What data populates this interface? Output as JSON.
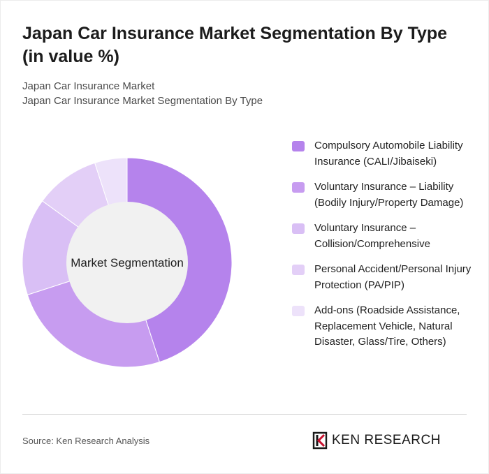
{
  "title": "Japan Car Insurance Market Segmentation By Type (in value %)",
  "subtitle_lines": [
    "Japan Car Insurance Market",
    "Japan Car Insurance Market Segmentation By Type"
  ],
  "chart_data": {
    "type": "pie",
    "variant": "donut",
    "center_label": "Market Segmentation",
    "categories": [
      "Compulsory Automobile Liability Insurance (CALI/Jibaiseki)",
      "Voluntary Insurance – Liability (Bodily Injury/Property Damage)",
      "Voluntary Insurance – Collision/Comprehensive",
      "Personal Accident/Personal Injury Protection (PA/PIP)",
      "Add-ons (Roadside Assistance, Replacement Vehicle, Natural Disaster, Glass/Tire, Others)"
    ],
    "values": [
      45,
      25,
      15,
      10,
      5
    ],
    "colors": [
      "#b583ec",
      "#c79cf0",
      "#d9bff5",
      "#e3cff7",
      "#ede2fa"
    ],
    "legend_position": "right"
  },
  "source": "Source: Ken Research Analysis",
  "logo": {
    "text": "KEN RESEARCH",
    "icon": "ken-research-logo-icon"
  }
}
